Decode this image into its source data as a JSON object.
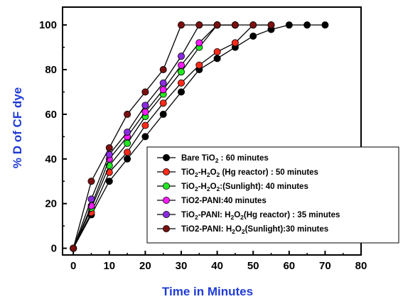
{
  "chart_data": {
    "type": "line",
    "xlabel": "Time in Minutes",
    "ylabel": "% D of CF dye",
    "xlim": [
      -3,
      80
    ],
    "ylim": [
      -3,
      108
    ],
    "xticks": [
      0,
      10,
      20,
      30,
      40,
      50,
      60,
      70,
      80
    ],
    "yticks": [
      0,
      20,
      40,
      60,
      80,
      100
    ],
    "xtick_labels": [
      "0",
      "10",
      "20",
      "30",
      "40",
      "50",
      "60",
      "70",
      "80"
    ],
    "ytick_labels": [
      "0",
      "20",
      "40",
      "60",
      "80",
      "100"
    ],
    "grid": false,
    "legend_position": "bottom-right",
    "series": [
      {
        "legend": [
          {
            "t": "Bare TiO"
          },
          {
            "t": "2",
            "sub": true
          },
          {
            "t": " : 60 minutes"
          }
        ],
        "color": "#000000",
        "x": [
          0,
          5,
          10,
          15,
          20,
          25,
          30,
          35,
          40,
          45,
          50,
          55,
          60,
          65,
          70
        ],
        "y": [
          0,
          15,
          30,
          40,
          50,
          60,
          70,
          80,
          85,
          90,
          95,
          98,
          100,
          100,
          100
        ]
      },
      {
        "legend": [
          {
            "t": "TiO"
          },
          {
            "t": "2",
            "sub": true
          },
          {
            "t": "-H"
          },
          {
            "t": "2",
            "sub": true
          },
          {
            "t": "O"
          },
          {
            "t": "2",
            "sub": true
          },
          {
            "t": " (Hg reactor) : 50 minutes"
          }
        ],
        "color": "#ff2a1a",
        "x": [
          0,
          5,
          10,
          15,
          20,
          25,
          30,
          35,
          40,
          45,
          50,
          55
        ],
        "y": [
          0,
          16,
          34,
          43,
          55,
          65,
          74,
          82,
          88,
          92,
          100,
          100
        ]
      },
      {
        "legend": [
          {
            "t": "TiO"
          },
          {
            "t": "2",
            "sub": true
          },
          {
            "t": "-H"
          },
          {
            "t": "2",
            "sub": true
          },
          {
            "t": "O"
          },
          {
            "t": "2",
            "sub": true
          },
          {
            "t": ":(Sunlight): 40 minutes"
          }
        ],
        "color": "#22e622",
        "x": [
          0,
          5,
          10,
          15,
          20,
          25,
          30,
          35,
          40,
          45
        ],
        "y": [
          0,
          18,
          37,
          47,
          59,
          69,
          79,
          90,
          100,
          100
        ]
      },
      {
        "legend": [
          {
            "t": "TiO2-PANI:40 minutes"
          }
        ],
        "color": "#ff1aff",
        "x": [
          0,
          5,
          10,
          15,
          20,
          25,
          30,
          35,
          40,
          45
        ],
        "y": [
          0,
          19,
          40,
          50,
          61,
          71,
          82,
          92,
          100,
          100
        ]
      },
      {
        "legend": [
          {
            "t": "TiO"
          },
          {
            "t": "2",
            "sub": true
          },
          {
            "t": "-PANI: H"
          },
          {
            "t": "2",
            "sub": true
          },
          {
            "t": "O"
          },
          {
            "t": "2",
            "sub": true
          },
          {
            "t": "(Hg reactor) : 35 minutes"
          }
        ],
        "color": "#8a2be2",
        "x": [
          0,
          5,
          10,
          15,
          20,
          25,
          30,
          35,
          40,
          45
        ],
        "y": [
          0,
          22,
          42,
          52,
          64,
          74,
          86,
          100,
          100,
          100
        ]
      },
      {
        "legend": [
          {
            "t": "TiO2-PANI: H"
          },
          {
            "t": "2",
            "sub": true
          },
          {
            "t": "O"
          },
          {
            "t": "2",
            "sub": true
          },
          {
            "t": "(Sunlight):30 minutes"
          }
        ],
        "color": "#7a1010",
        "x": [
          0,
          5,
          10,
          15,
          20,
          25,
          30,
          35,
          40,
          45,
          50,
          55
        ],
        "y": [
          0,
          30,
          45,
          60,
          70,
          80,
          100,
          100,
          100,
          100,
          100,
          100
        ]
      }
    ]
  }
}
